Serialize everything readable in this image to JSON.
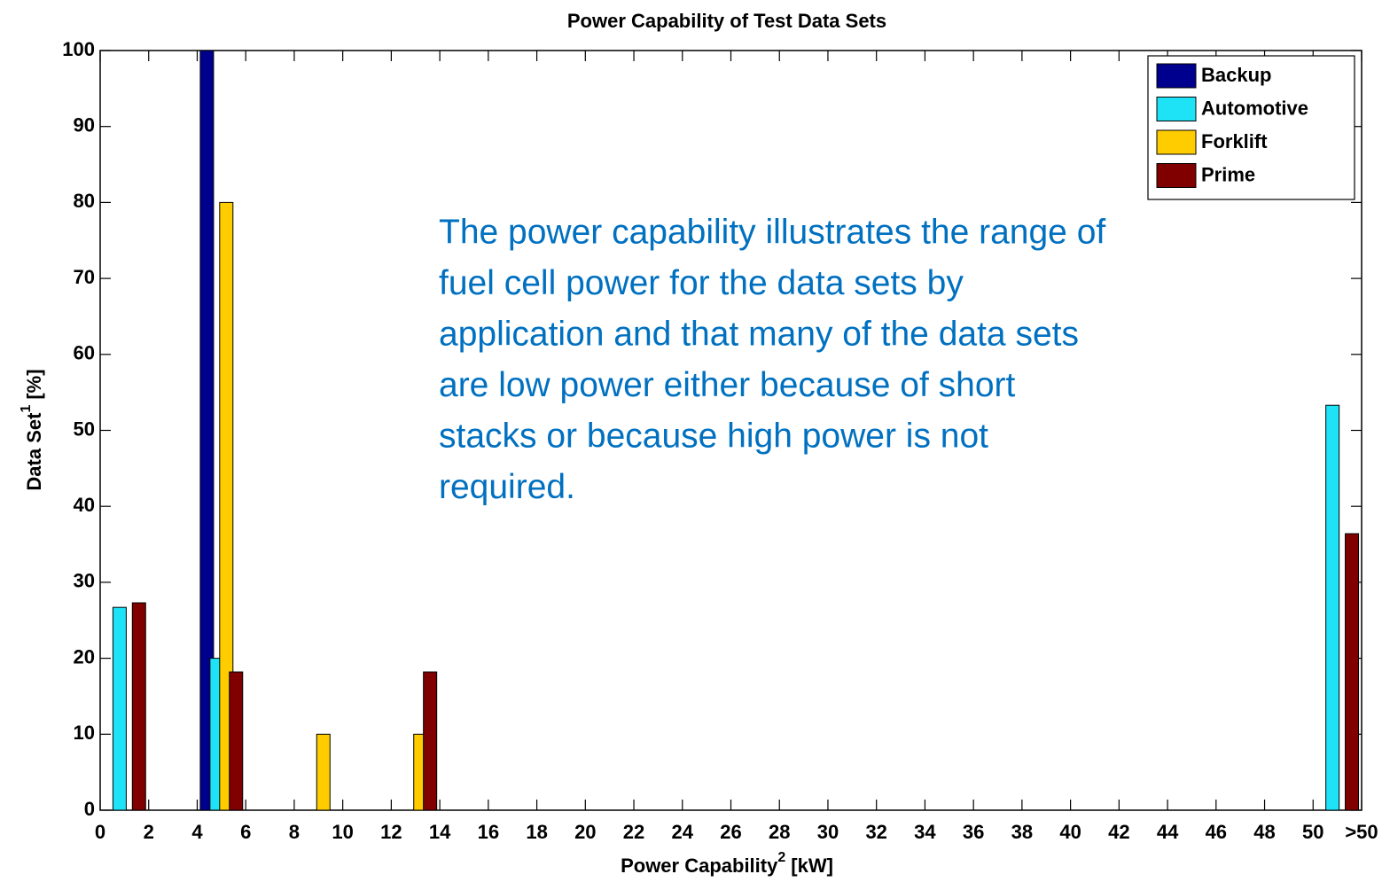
{
  "chart_data": {
    "type": "bar",
    "title": "Power Capability of Test Data Sets",
    "xlabel": "Power Capability",
    "xlabel_sup": "2",
    "xlabel_unit": "[kW]",
    "ylabel": "Data Set",
    "ylabel_sup": "1",
    "ylabel_unit": "[%]",
    "x": [
      1,
      5,
      9,
      13,
      51
    ],
    "series": [
      {
        "name": "Backup",
        "color": "#00008f",
        "values": [
          0,
          100,
          0,
          0,
          0
        ]
      },
      {
        "name": "Automotive",
        "color": "#1ee3f7",
        "values": [
          26.7,
          20,
          0,
          0,
          53.3
        ]
      },
      {
        "name": "Forklift",
        "color": "#ffcc00",
        "values": [
          0,
          80,
          10,
          10,
          0
        ]
      },
      {
        "name": "Prime",
        "color": "#800000",
        "values": [
          27.3,
          18.2,
          0,
          18.2,
          36.4
        ]
      }
    ],
    "xlim": [
      0,
      52
    ],
    "xticks": [
      0,
      2,
      4,
      6,
      8,
      10,
      12,
      14,
      16,
      18,
      20,
      22,
      24,
      26,
      28,
      30,
      32,
      34,
      36,
      38,
      40,
      42,
      44,
      46,
      48,
      50,
      {
        "value": 52,
        "label": ">50"
      }
    ],
    "ylim": [
      0,
      100
    ],
    "yticks": [
      0,
      10,
      20,
      30,
      40,
      50,
      60,
      70,
      80,
      90,
      100
    ],
    "legend": "top-right",
    "annotation": {
      "color": "#0070c0",
      "lines": [
        "The power capability illustrates the range of",
        "fuel cell power for the data sets by",
        "application and that many of the data sets",
        "are low power either because of short",
        "stacks or because high power is not",
        "required."
      ]
    }
  }
}
